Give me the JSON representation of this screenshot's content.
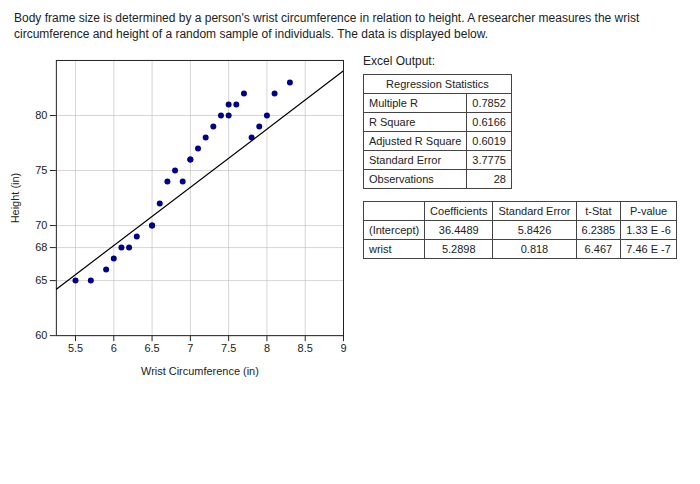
{
  "chart_data": {
    "type": "scatter",
    "title": "Body frame size is determined by a person's wrist circumference in relation to height. A researcher measures the wrist\ncircumference and height of a random sample of individuals. The data is displayed below.",
    "xlabel": "Wrist Circumference (in)",
    "ylabel": "Height (in)",
    "series": [
      {
        "type": "scatter",
        "color": "#00008B",
        "x": [
          5.5,
          5.7,
          5.9,
          6.0,
          6.1,
          6.2,
          6.3,
          6.5,
          6.5,
          6.6,
          6.7,
          6.8,
          6.9,
          7.0,
          7.0,
          7.1,
          7.2,
          7.3,
          7.4,
          7.5,
          7.5,
          7.6,
          7.7,
          7.8,
          7.9,
          8.0,
          8.1,
          8.3
        ],
        "values": [
          65,
          65,
          66,
          67,
          68,
          68,
          69,
          70,
          70,
          72,
          74,
          75,
          74,
          76,
          76,
          77,
          78,
          79,
          80,
          80,
          81,
          81,
          82,
          78,
          79,
          80,
          82,
          83
        ]
      },
      {
        "type": "line",
        "color": "#000000",
        "x": [
          5.25,
          9.0
        ],
        "values": [
          64.22035,
          84.0571
        ]
      }
    ],
    "xlim": [
      5.25,
      9.0
    ],
    "ylim": [
      60,
      85
    ],
    "xticks": [
      5.5,
      6,
      6.5,
      7,
      7.5,
      8,
      8.5,
      9
    ],
    "yticks": [
      60,
      65,
      68,
      70,
      75,
      80
    ],
    "grid": true,
    "annotations": [
      "Excel Output:"
    ],
    "tables": [
      {
        "title": "Regression Statistics",
        "rows": [
          [
            "Multiple R",
            "0.7852"
          ],
          [
            "R Square",
            "0.6166"
          ],
          [
            "Adjusted R Square",
            "0.6019"
          ],
          [
            "Standard Error",
            "3.7775"
          ],
          [
            "Observations",
            "28"
          ]
        ]
      },
      {
        "columns": [
          null,
          "Coefficients",
          "Standard Error",
          "t-Stat",
          "P-value"
        ],
        "rows": [
          [
            "(Intercept)",
            "36.4489",
            "5.8426",
            "6.2385",
            "1.33 E -6"
          ],
          [
            "wrist",
            "5.2898",
            "0.818",
            "6.467",
            "7.46 E -7"
          ]
        ]
      }
    ]
  }
}
